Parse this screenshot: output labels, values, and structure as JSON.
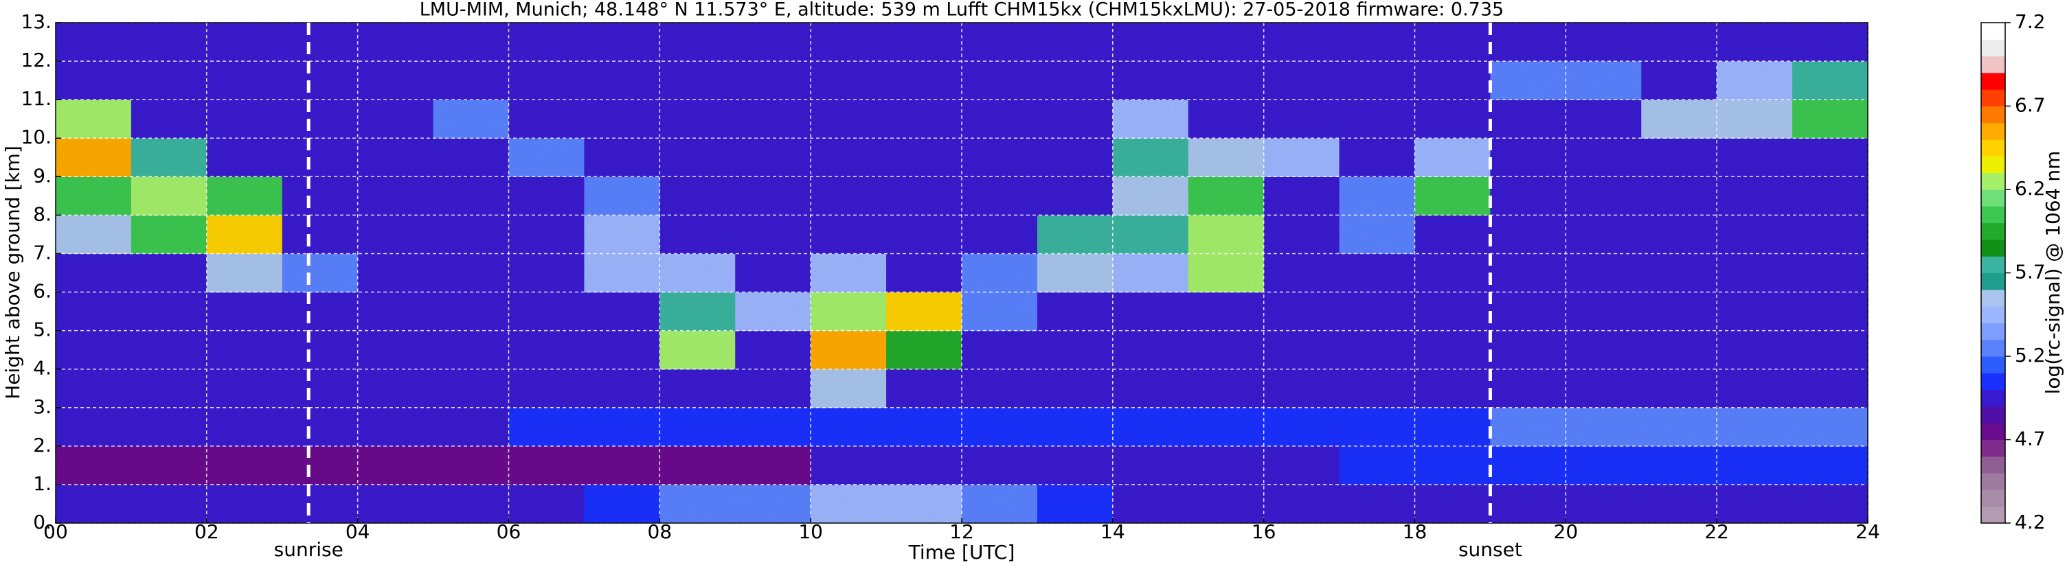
{
  "chart_data": {
    "type": "heatmap",
    "title": "LMU-MIM, Munich; 48.148° N 11.573° E, altitude: 539 m    Lufft CHM15kx (CHM15kxLMU): 27-05-2018    firmware: 0.735",
    "x_label": "Time [UTC]",
    "y_label": "Height above ground [km]",
    "colorbar_label": "log(rc-signal) @ 1064 nm",
    "xlim": [
      0,
      24
    ],
    "ylim": [
      0,
      13
    ],
    "xticks": [
      {
        "value": 0,
        "label": "00"
      },
      {
        "value": 2,
        "label": "02"
      },
      {
        "value": 4,
        "label": "04"
      },
      {
        "value": 6,
        "label": "06"
      },
      {
        "value": 8,
        "label": "08"
      },
      10,
      12,
      14,
      16,
      18,
      20,
      22,
      24
    ],
    "yticks": [
      {
        "value": 0,
        "label": "0."
      },
      {
        "value": 1,
        "label": "1."
      },
      {
        "value": 2,
        "label": "2."
      },
      {
        "value": 3,
        "label": "3."
      },
      {
        "value": 4,
        "label": "4."
      },
      {
        "value": 5,
        "label": "5."
      },
      {
        "value": 6,
        "label": "6."
      },
      {
        "value": 7,
        "label": "7."
      },
      {
        "value": 8,
        "label": "8."
      },
      {
        "value": 9,
        "label": "9."
      },
      {
        "value": 10,
        "label": "10."
      },
      {
        "value": 11,
        "label": "11."
      },
      {
        "value": 12,
        "label": "12."
      },
      {
        "value": 13,
        "label": "13."
      }
    ],
    "grid": true,
    "clim": [
      4.2,
      7.2
    ],
    "cticks": [
      4.2,
      4.7,
      5.2,
      5.7,
      6.2,
      6.7,
      7.2
    ],
    "colormap": [
      "#b39cb3",
      "#a88ca8",
      "#9e7aa0",
      "#8f5e93",
      "#7e2b8c",
      "#6a0a8e",
      "#5010a8",
      "#3a1ad0",
      "#1a30ff",
      "#2d5cff",
      "#5a82ff",
      "#7f9cff",
      "#9cb6ff",
      "#a9c5ee",
      "#1e9e8c",
      "#3ab4a0",
      "#129018",
      "#22aa2a",
      "#3cc850",
      "#6ee07a",
      "#a4f06a",
      "#ecf000",
      "#ffd200",
      "#ffaa00",
      "#ff7a00",
      "#ff4000",
      "#ff0000",
      "#f0c4c4",
      "#ececec",
      "#ffffff"
    ],
    "vlines": [
      {
        "x": 3.35,
        "label": "sunrise"
      },
      {
        "x": 19.0,
        "label": "sunset"
      }
    ],
    "xbins": [
      0,
      1,
      2,
      3,
      4,
      5,
      6,
      7,
      8,
      9,
      10,
      11,
      12,
      13,
      14,
      15,
      16,
      17,
      18,
      19,
      20,
      21,
      22,
      23,
      24
    ],
    "ybins": [
      0,
      1,
      2,
      3,
      4,
      5,
      6,
      7,
      8,
      9,
      10,
      11,
      12,
      13
    ],
    "z": [
      [
        5.0,
        5.0,
        5.0,
        5.0,
        5.0,
        5.0,
        5.0,
        5.1,
        5.2,
        5.3,
        5.4,
        5.4,
        5.3,
        5.1,
        5.0,
        5.0,
        5.0,
        5.0,
        5.0,
        5.0,
        5.0,
        4.9,
        4.9,
        4.9
      ],
      [
        4.7,
        4.7,
        4.7,
        4.7,
        4.8,
        4.8,
        4.8,
        4.8,
        4.8,
        4.8,
        4.9,
        4.9,
        4.9,
        4.9,
        4.9,
        4.9,
        5.0,
        5.1,
        5.1,
        5.1,
        5.1,
        5.1,
        5.1,
        5.1
      ],
      [
        4.9,
        4.9,
        4.9,
        5.0,
        5.0,
        5.0,
        5.1,
        5.1,
        5.1,
        5.1,
        5.1,
        5.1,
        5.1,
        5.1,
        5.1,
        5.1,
        5.1,
        5.1,
        5.1,
        5.2,
        5.2,
        5.2,
        5.2,
        5.2
      ],
      [
        5.0,
        5.0,
        5.0,
        5.0,
        5.0,
        5.0,
        5.0,
        5.0,
        5.0,
        5.0,
        5.6,
        5.0,
        5.0,
        5.0,
        5.0,
        5.0,
        5.0,
        5.0,
        5.0,
        5.0,
        5.0,
        5.0,
        5.0,
        5.0
      ],
      [
        5.0,
        5.0,
        5.0,
        5.0,
        5.0,
        5.0,
        5.0,
        5.0,
        6.3,
        5.0,
        6.5,
        5.9,
        5.0,
        5.0,
        5.0,
        5.0,
        5.0,
        5.0,
        5.0,
        5.0,
        5.0,
        5.0,
        5.0,
        5.0
      ],
      [
        5.0,
        5.0,
        5.0,
        5.0,
        5.0,
        5.0,
        5.0,
        5.0,
        5.8,
        5.4,
        6.2,
        6.4,
        5.3,
        5.0,
        5.0,
        5.0,
        5.0,
        5.0,
        5.0,
        5.0,
        5.0,
        5.0,
        5.0,
        5.0
      ],
      [
        5.0,
        5.0,
        5.6,
        5.3,
        5.0,
        5.0,
        5.0,
        5.4,
        5.5,
        5.0,
        5.5,
        5.0,
        5.3,
        5.6,
        5.5,
        6.2,
        5.0,
        5.0,
        5.0,
        5.0,
        5.0,
        5.0,
        5.0,
        5.0
      ],
      [
        5.6,
        6.1,
        6.4,
        5.0,
        5.0,
        5.0,
        5.0,
        5.4,
        5.0,
        5.0,
        5.0,
        5.0,
        5.0,
        5.8,
        5.7,
        6.3,
        5.0,
        5.3,
        5.0,
        5.0,
        5.0,
        5.0,
        5.0,
        5.0
      ],
      [
        6.0,
        6.3,
        6.0,
        5.0,
        5.0,
        5.0,
        5.0,
        5.3,
        5.0,
        5.0,
        5.0,
        5.0,
        5.0,
        5.0,
        5.6,
        6.0,
        5.0,
        5.2,
        6.0,
        5.0,
        5.0,
        5.0,
        5.0,
        5.0
      ],
      [
        6.5,
        5.8,
        5.0,
        5.0,
        5.0,
        5.0,
        5.3,
        5.0,
        5.0,
        5.0,
        5.0,
        5.0,
        5.0,
        5.0,
        5.8,
        5.6,
        5.5,
        5.0,
        5.4,
        5.0,
        5.0,
        5.0,
        5.0,
        5.0
      ],
      [
        6.2,
        5.0,
        5.0,
        5.0,
        5.0,
        5.2,
        5.0,
        5.0,
        5.0,
        5.0,
        5.0,
        5.0,
        5.0,
        5.0,
        5.5,
        5.0,
        5.0,
        5.0,
        5.0,
        5.0,
        5.0,
        5.6,
        5.6,
        6.0
      ],
      [
        5.0,
        5.0,
        5.0,
        5.0,
        5.0,
        5.0,
        5.0,
        5.0,
        5.0,
        5.0,
        5.0,
        5.0,
        5.0,
        5.0,
        5.0,
        5.0,
        5.0,
        5.0,
        5.0,
        5.2,
        5.2,
        5.0,
        5.4,
        5.7
      ],
      [
        5.0,
        5.0,
        5.0,
        5.0,
        5.0,
        5.0,
        5.0,
        5.0,
        5.0,
        5.0,
        5.0,
        5.0,
        5.0,
        5.0,
        5.0,
        5.0,
        5.0,
        5.0,
        5.0,
        5.0,
        5.0,
        5.0,
        5.0,
        5.0
      ]
    ]
  }
}
